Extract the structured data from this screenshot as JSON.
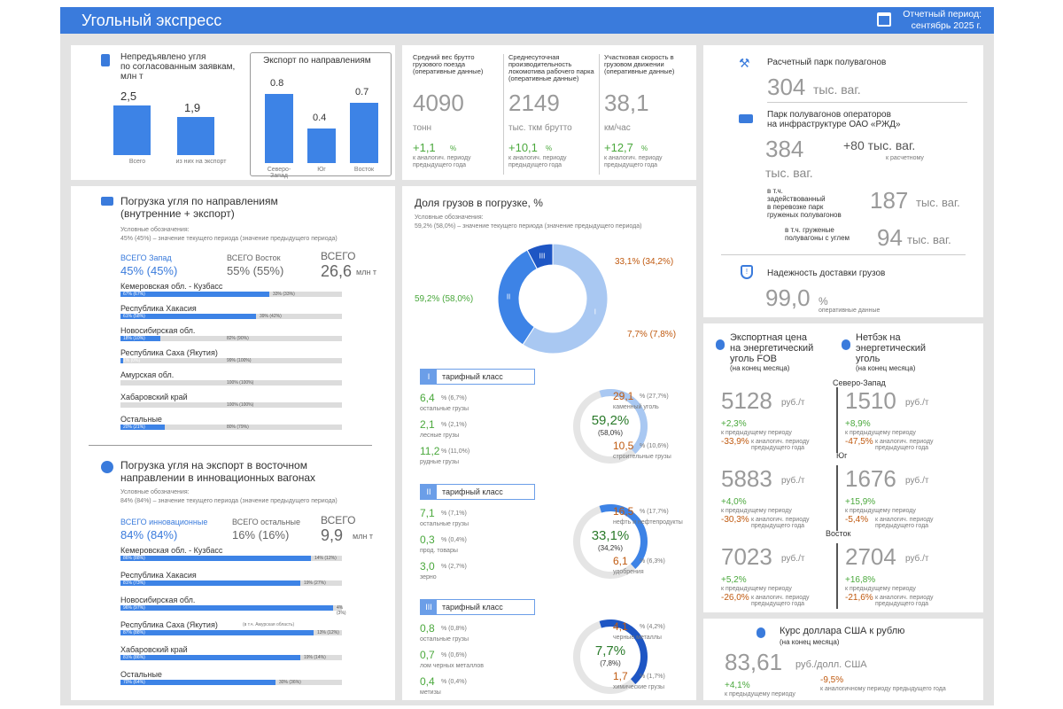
{
  "header": {
    "title": "Угольный экспресс",
    "period_label": "Отчетный период:",
    "period_value": "сентябрь 2025 г."
  },
  "undelivered": {
    "title_l1": "Непредъявлено угля",
    "title_l2": "по согласованным заявкам,",
    "title_l3": "млн т",
    "bars": [
      {
        "value": "2,5",
        "label": "Всего",
        "fill": 1.0
      },
      {
        "value": "1,9",
        "label": "из них на экспорт",
        "fill": 0.76
      }
    ],
    "export_title": "Экспорт по направлениям",
    "export_bars": [
      {
        "value": "0.8",
        "label": "Северо-Запад",
        "fill": 1.0
      },
      {
        "value": "0.4",
        "label": "Юг",
        "fill": 0.5
      },
      {
        "value": "0.7",
        "label": "Восток",
        "fill": 0.87
      }
    ]
  },
  "metrics": [
    {
      "title": "Средний вес брутто грузового поезда (оперативные данные)",
      "value": "4090",
      "unit": "тонн",
      "change": "+1,1",
      "pct": "%",
      "note": "к аналогич. периоду предыдущего года"
    },
    {
      "title": "Среднесуточная производительность локомотива рабочего парка (оперативные данные)",
      "value": "2149",
      "unit": "тыс. ткм брутто",
      "change": "+10,1",
      "pct": "%",
      "note": "к аналогич. периоду предыдущего года"
    },
    {
      "title": "Участковая скорость в грузовом движении (оперативные данные)",
      "value": "38,1",
      "unit": "км/час",
      "change": "+12,7",
      "pct": "%",
      "note": "к аналогич. периоду предыдущего года"
    }
  ],
  "wagons": {
    "fleet_label": "Расчетный парк полувагонов",
    "fleet_value": "304",
    "fleet_unit": "тыс. ваг.",
    "ops_label_l1": "Парк полувагонов операторов",
    "ops_label_l2": "на инфраструктуре ОАО «РЖД»",
    "ops_value": "384",
    "ops_unit": "тыс. ваг.",
    "ops_delta": "+80 тыс. ваг.",
    "ops_delta_note": "к расчетному",
    "loaded_l1": "в т.ч.",
    "loaded_l2": "задействованный",
    "loaded_l3": "в перевозке парк",
    "loaded_l4": "груженых полувагонов",
    "loaded_value": "187",
    "loaded_unit": "тыс. ваг.",
    "coal_l1": "в т.ч. груженые",
    "coal_l2": "полувагоны с углем",
    "coal_value": "94",
    "coal_unit": "тыс. ваг.",
    "rel_label": "Надежность доставки грузов",
    "rel_value": "99,0",
    "rel_pct": "%",
    "rel_note": "оперативные данные"
  },
  "loading": {
    "title_l1": "Погрузка угля по направлениям",
    "title_l2": "(внутренние + экспорт)",
    "legend_title": "Условные обозначения:",
    "legend": "45% (45%) – значение текущего периода (значение предыдущего периода)",
    "west_label": "ВСЕГО Запад",
    "west_value": "45% (45%)",
    "east_label": "ВСЕГО Восток",
    "east_value": "55% (55%)",
    "total_label": "ВСЕГО",
    "total_value": "26,6",
    "total_unit": "млн т",
    "rows": [
      {
        "name": "Кемеровская обл. - Кузбасс",
        "left": "67% (67%)",
        "right": "33% (33%)",
        "frac": 0.67
      },
      {
        "name": "Республика Хакасия",
        "left": "61% (58%)",
        "right": "39% (42%)",
        "frac": 0.61
      },
      {
        "name": "Новосибирская обл.",
        "left": "18% (10%)",
        "right": "82% (90%)",
        "frac": 0.18
      },
      {
        "name": "Республика Саха (Якутия)",
        "left": "1% (0%)",
        "right": "99% (100%)",
        "frac": 0.01
      },
      {
        "name": "Амурская обл.",
        "left": "",
        "right": "100% (100%)",
        "frac": 0.0
      },
      {
        "name": "Хабаровский край",
        "left": "",
        "right": "100% (100%)",
        "frac": 0.0
      },
      {
        "name": "Остальные",
        "left": "20% (21%)",
        "right": "80% (79%)",
        "frac": 0.2
      }
    ]
  },
  "innov": {
    "title_l1": "Погрузка угля на экспорт в восточном",
    "title_l2": "направлении в инновационных вагонах",
    "legend_title": "Условные обозначения:",
    "legend": "84% (84%) – значение текущего периода (значение предыдущего периода)",
    "a_label": "ВСЕГО инновационные",
    "a_value": "84% (84%)",
    "b_label": "ВСЕГО остальные",
    "b_value": "16% (16%)",
    "total_label": "ВСЕГО",
    "total_value": "9,9",
    "total_unit": "млн т",
    "rows": [
      {
        "name": "Кемеровская обл. - Кузбасс",
        "left": "86% (88%)",
        "right": "14% (12%)",
        "frac": 0.86
      },
      {
        "name": "Республика Хакасия",
        "left": "81% (73%)",
        "right": "19% (27%)",
        "frac": 0.81
      },
      {
        "name": "Новосибирская обл.",
        "left": "96% (97%)",
        "right": "4% (3%)",
        "frac": 0.96
      },
      {
        "name": "Республика Саха (Якутия)",
        "extra": "(в т.ч. Амурская область)",
        "left": "87% (88%)",
        "right": "13% (12%)",
        "frac": 0.87
      },
      {
        "name": "Хабаровский край",
        "left": "81% (86%)",
        "right": "19% (14%)",
        "frac": 0.81
      },
      {
        "name": "Остальные",
        "left": "70% (64%)",
        "right": "30% (36%)",
        "frac": 0.7
      }
    ]
  },
  "share": {
    "title": "Доля грузов в погрузке, %",
    "legend_title": "Условные обозначения:",
    "legend": "59,2% (58,0%) – значение текущего периода (значение предыдущего периода)",
    "main": [
      {
        "label": "59,2% (58,0%)",
        "value": 59.2,
        "cls": "I",
        "color": "#a9c8f2"
      },
      {
        "label": "33,1% (34,2%)",
        "value": 33.1,
        "cls": "II",
        "color": "#3d83e6"
      },
      {
        "label": "7,7% (7,8%)",
        "value": 7.7,
        "cls": "III",
        "color": "#1e56c4"
      }
    ],
    "cls_word": "клас с",
    "tariffs": [
      {
        "num": "I",
        "name": "тарифный класс",
        "center": "59,2%",
        "center_prev": "(58,0%)",
        "color": "#a9c8f2",
        "left": [
          {
            "v": "6,4",
            "p": "% (6,7%)",
            "n": "остальные грузы"
          },
          {
            "v": "2,1",
            "p": "% (2,1%)",
            "n": "лесные грузы"
          },
          {
            "v": "11,2",
            "p": "% (11,0%)",
            "n": "рудные грузы"
          }
        ],
        "right": [
          {
            "v": "29,1",
            "p": "% (27,7%)",
            "n": "каменный уголь"
          },
          {
            "v": "10,5",
            "p": "% (10,6%)",
            "n": "строительные грузы"
          }
        ]
      },
      {
        "num": "II",
        "name": "тарифный класс",
        "center": "33,1%",
        "center_prev": "(34,2%)",
        "color": "#3d83e6",
        "left": [
          {
            "v": "7,1",
            "p": "% (7,1%)",
            "n": "остальные грузы"
          },
          {
            "v": "0,3",
            "p": "% (0,4%)",
            "n": "прод. товары"
          },
          {
            "v": "3,0",
            "p": "% (2,7%)",
            "n": "зерно"
          }
        ],
        "right": [
          {
            "v": "16,5",
            "p": "% (17,7%)",
            "n": "нефть и нефтепродукты"
          },
          {
            "v": "6,1",
            "p": "% (6,3%)",
            "n": "удобрения"
          }
        ]
      },
      {
        "num": "III",
        "name": "тарифный класс",
        "center": "7,7%",
        "center_prev": "(7,8%)",
        "color": "#1e56c4",
        "left": [
          {
            "v": "0,8",
            "p": "% (0,8%)",
            "n": "остальные грузы"
          },
          {
            "v": "0,7",
            "p": "% (0,6%)",
            "n": "лом черных металлов"
          },
          {
            "v": "0,4",
            "p": "% (0,4%)",
            "n": "метизы"
          }
        ],
        "right": [
          {
            "v": "4,1",
            "p": "% (4,2%)",
            "n": "черные металлы"
          },
          {
            "v": "1,7",
            "p": "% (1,7%)",
            "n": "химические грузы"
          }
        ]
      }
    ]
  },
  "prices": {
    "fob_l1": "Экспортная цена",
    "fob_l2": "на энергетический",
    "fob_l3": "уголь FOB",
    "fob_l4": "(на конец месяца)",
    "net_l1": "Нетбэк на",
    "net_l2": "энергетический",
    "net_l3": "уголь",
    "net_l4": "(на конец месяца)",
    "unit": "руб./т",
    "prev_month": "к предыдущему периоду",
    "prev_year": "к аналогич. периоду предыдущего года",
    "regions": [
      {
        "name": "Северо-Запад",
        "fob": "5128",
        "fob_m": "+2,3%",
        "fob_y": "-33,9%",
        "net": "1510",
        "net_m": "+8,9%",
        "net_y": "-47,5%"
      },
      {
        "name": "Юг",
        "fob": "5883",
        "fob_m": "+4,0%",
        "fob_y": "-30,3%",
        "net": "1676",
        "net_m": "+15,9%",
        "net_y": "-5,4%"
      },
      {
        "name": "Восток",
        "fob": "7023",
        "fob_m": "+5,2%",
        "fob_y": "-26,0%",
        "net": "2704",
        "net_m": "+16,8%",
        "net_y": "-21,6%"
      }
    ]
  },
  "usd": {
    "title": "Курс доллара США к рублю",
    "sub": "(на конец месяца)",
    "value": "83,61",
    "unit": "руб./долл. США",
    "m": "+4,1%",
    "m_note": "к предыдущему периоду",
    "y": "-9,5%",
    "y_note": "к аналогичному периоду предыдущего года"
  }
}
